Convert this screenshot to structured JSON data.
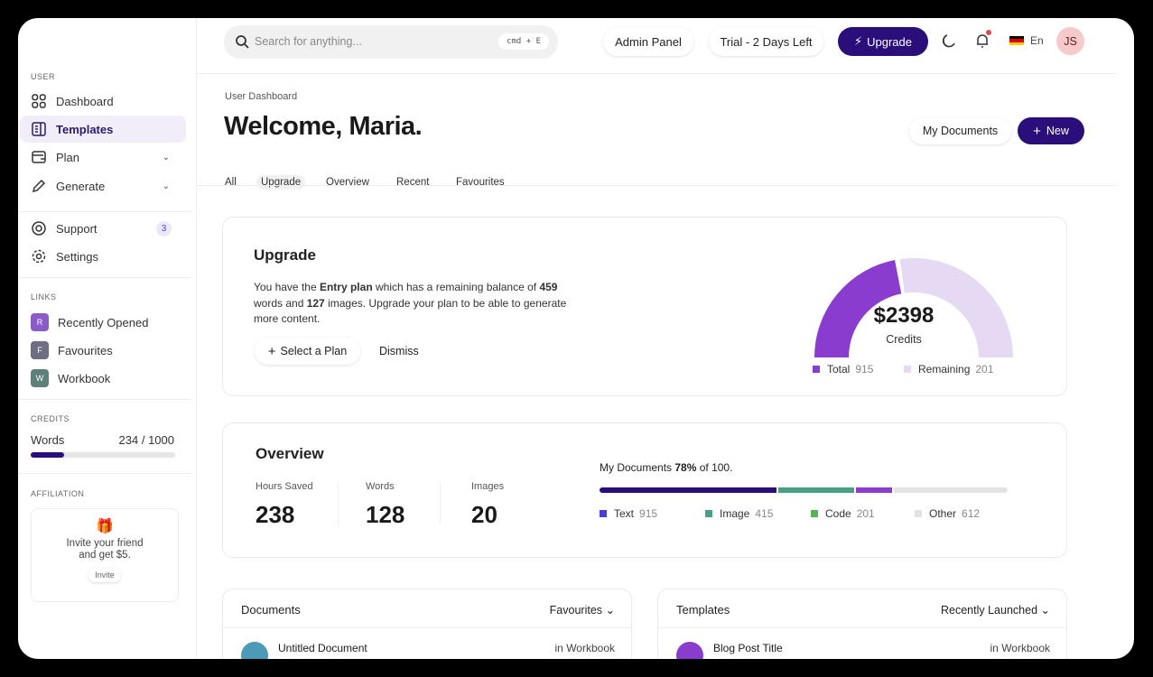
{
  "topbar": {
    "search_placeholder": "Search for anything...",
    "shortcut": "cmd + E",
    "admin": "Admin Panel",
    "trial": "Trial - 2 Days Left",
    "upgrade": "Upgrade",
    "lang": "En",
    "avatar": "JS"
  },
  "sidebar": {
    "user_label": "USER",
    "items": [
      {
        "label": "Dashboard"
      },
      {
        "label": "Templates"
      },
      {
        "label": "Plan"
      },
      {
        "label": "Generate"
      },
      {
        "label": "Support",
        "badge": "3"
      },
      {
        "label": "Settings"
      }
    ],
    "links_label": "LINKS",
    "links": [
      {
        "letter": "R",
        "label": "Recently Opened",
        "color": "#8a5cc9"
      },
      {
        "letter": "F",
        "label": "Favourites",
        "color": "#6d6f80"
      },
      {
        "letter": "W",
        "label": "Workbook",
        "color": "#5f7f7a"
      }
    ],
    "credits_label": "CREDITS",
    "credits_name": "Words",
    "credits_value": "234 / 1000",
    "credits_fraction": 0.234,
    "affiliation_label": "AFFILIATION",
    "invite_text": "Invite your friend and get $5.",
    "invite_button": "Invite"
  },
  "header": {
    "breadcrumb": "User Dashboard",
    "title": "Welcome, Maria.",
    "my_documents": "My Documents",
    "new": "New",
    "tabs": [
      "All",
      "Upgrade",
      "Overview",
      "Recent",
      "Favourites"
    ],
    "active_tab": "Upgrade"
  },
  "upgrade": {
    "title": "Upgrade",
    "t1": "You have the ",
    "plan": "Entry plan",
    "t2": " which has a remaining balance of ",
    "words": "459",
    "t3": " words and ",
    "images": "127",
    "t4": " images. Upgrade your plan to be able to generate more content.",
    "select": "Select a Plan",
    "dismiss": "Dismiss",
    "gauge": {
      "amount": "$2398",
      "label": "Credits",
      "total_label": "Total",
      "total": "915",
      "remaining_label": "Remaining",
      "remaining": "201",
      "colors": {
        "total": "#8a3ccf",
        "remaining": "#e6d9f3"
      }
    }
  },
  "overview": {
    "title": "Overview",
    "stats": [
      {
        "label": "Hours Saved",
        "value": "238"
      },
      {
        "label": "Words",
        "value": "128"
      },
      {
        "label": "Images",
        "value": "20"
      }
    ],
    "docs_pre": "My Documents ",
    "docs_pct": "78%",
    "docs_post": " of 100.",
    "legend": [
      {
        "label": "Text",
        "value": "915",
        "color": "#2a0e7a"
      },
      {
        "label": "Image",
        "value": "415",
        "color": "#4a9e85"
      },
      {
        "label": "Code",
        "value": "201",
        "color": "#8a3ccf"
      },
      {
        "label": "Other",
        "value": "612",
        "color": "#e3e3e3"
      }
    ]
  },
  "documents": {
    "title": "Documents",
    "filter": "Favourites",
    "row": {
      "name": "Untitled Document",
      "meta": "in Workbook"
    }
  },
  "templates": {
    "title": "Templates",
    "filter": "Recently Launched",
    "row": {
      "name": "Blog Post Title",
      "meta": "in Workbook"
    }
  }
}
